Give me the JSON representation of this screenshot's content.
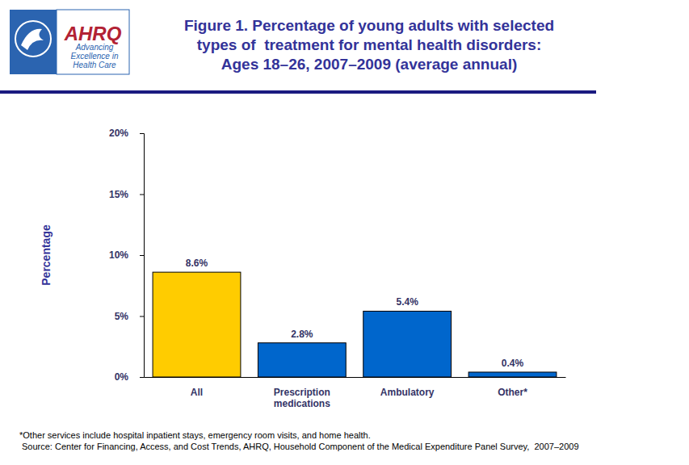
{
  "chart_data": {
    "type": "bar",
    "title": "Figure 1. Percentage of young adults with selected\ntypes of  treatment for mental health disorders:\nAges 18–26, 2007–2009 (average annual)",
    "ylabel": "Percentage",
    "categories": [
      "All",
      "Prescription medications",
      "Ambulatory",
      "Other*"
    ],
    "values": [
      8.6,
      2.8,
      5.4,
      0.4
    ],
    "value_labels": [
      "8.6%",
      "2.8%",
      "5.4%",
      "0.4%"
    ],
    "colors": [
      "#ffcc00",
      "#0066cc",
      "#0066cc",
      "#0066cc"
    ],
    "ylim": [
      0,
      20
    ],
    "yticks": [
      {
        "value": 0,
        "label": "0%"
      },
      {
        "value": 5,
        "label": "5%"
      },
      {
        "value": 10,
        "label": "10%"
      },
      {
        "value": 15,
        "label": "15%"
      },
      {
        "value": 20,
        "label": "20%"
      }
    ],
    "grid": false,
    "data_labels": true,
    "annotations": [
      "AHRQ",
      "Advancing\nExcellence in\nHealth Care",
      "*Other services include hospital inpatient stays, emergency room visits, and home health.",
      "Source: Center for Financing, Access, and Cost Trends, AHRQ, Household Component of the Medical Expenditure Panel Survey,  2007–2009"
    ]
  }
}
